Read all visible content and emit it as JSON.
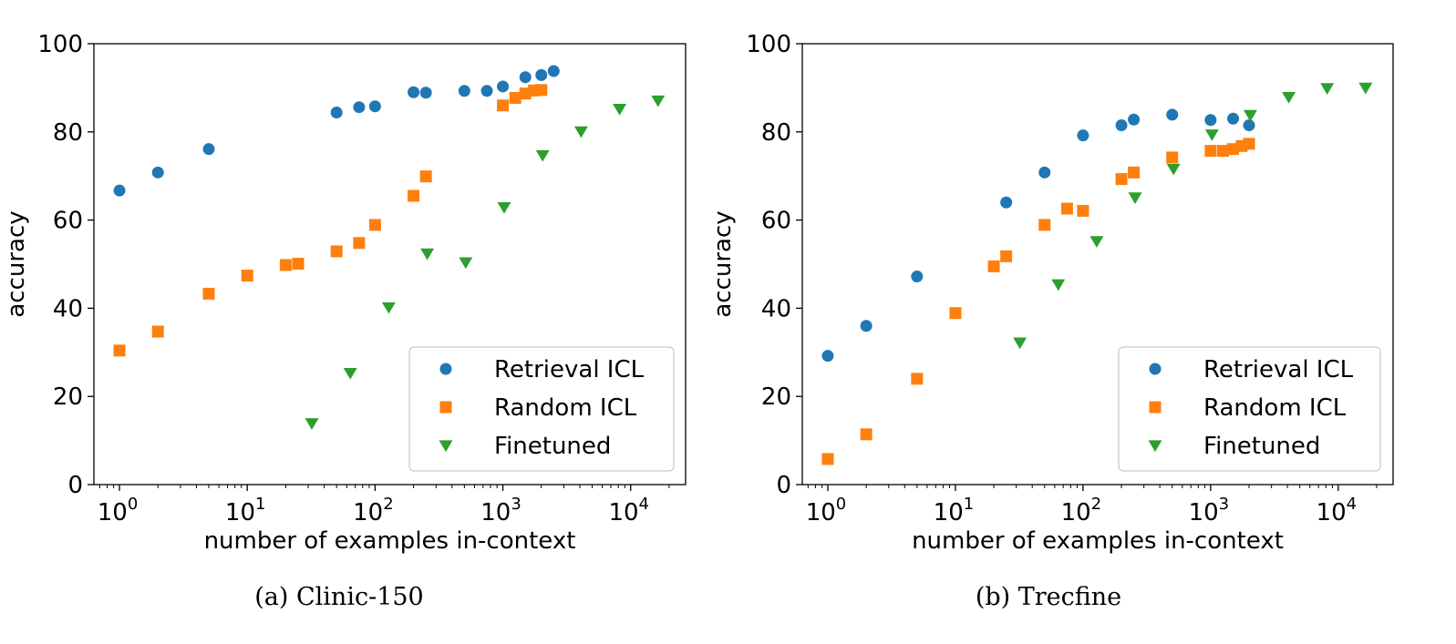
{
  "chart_data": [
    {
      "type": "scatter",
      "caption": "(a) Clinic-150",
      "xlabel": "number of examples in-context",
      "ylabel": "accuracy",
      "xscale": "log",
      "xlim_exp": [
        -0.2,
        4.43
      ],
      "ylim": [
        0,
        100
      ],
      "xticks": [
        {
          "exp": 0,
          "base": "10",
          "power": "0"
        },
        {
          "exp": 1,
          "base": "10",
          "power": "1"
        },
        {
          "exp": 2,
          "base": "10",
          "power": "2"
        },
        {
          "exp": 3,
          "base": "10",
          "power": "3"
        },
        {
          "exp": 4,
          "base": "10",
          "power": "4"
        }
      ],
      "yticks": [
        "0",
        "20",
        "40",
        "60",
        "80",
        "100"
      ],
      "legend_position": "lower-right",
      "series": [
        {
          "name": "Retrieval ICL",
          "marker": "circle",
          "color": "#1f77b4",
          "x": [
            1,
            2,
            5,
            50,
            75,
            100,
            200,
            250,
            500,
            750,
            1000,
            1500,
            2000,
            2500
          ],
          "y": [
            66.7,
            70.8,
            76.1,
            84.4,
            85.6,
            85.8,
            89.0,
            88.9,
            89.3,
            89.3,
            90.3,
            92.4,
            92.9,
            93.8
          ]
        },
        {
          "name": "Random ICL",
          "marker": "square",
          "color": "#ff7f0e",
          "x": [
            1,
            2,
            5,
            10,
            20,
            25,
            50,
            75,
            100,
            200,
            250,
            1000,
            1250,
            1500,
            1750,
            2000
          ],
          "y": [
            30.4,
            34.7,
            43.3,
            47.4,
            49.8,
            50.1,
            52.9,
            54.8,
            58.9,
            65.5,
            69.9,
            86.0,
            87.7,
            88.7,
            89.4,
            89.5
          ]
        },
        {
          "name": "Finetuned",
          "marker": "triangle-down",
          "color": "#2ca02c",
          "x": [
            32,
            64,
            128,
            256,
            512,
            1024,
            2048,
            4096,
            8192,
            16384
          ],
          "y": [
            13.9,
            25.3,
            40.2,
            52.4,
            50.4,
            62.9,
            74.7,
            80.1,
            85.2,
            87.1
          ]
        }
      ]
    },
    {
      "type": "scatter",
      "caption": "(b) Trecfine",
      "xlabel": "number of examples in-context",
      "ylabel": "accuracy",
      "xscale": "log",
      "xlim_exp": [
        -0.2,
        4.43
      ],
      "ylim": [
        0,
        100
      ],
      "xticks": [
        {
          "exp": 0,
          "base": "10",
          "power": "0"
        },
        {
          "exp": 1,
          "base": "10",
          "power": "1"
        },
        {
          "exp": 2,
          "base": "10",
          "power": "2"
        },
        {
          "exp": 3,
          "base": "10",
          "power": "3"
        },
        {
          "exp": 4,
          "base": "10",
          "power": "4"
        }
      ],
      "yticks": [
        "0",
        "20",
        "40",
        "60",
        "80",
        "100"
      ],
      "legend_position": "lower-right",
      "series": [
        {
          "name": "Retrieval ICL",
          "marker": "circle",
          "color": "#1f77b4",
          "x": [
            1,
            2,
            5,
            25,
            50,
            100,
            200,
            250,
            500,
            1000,
            1500,
            2000
          ],
          "y": [
            29.2,
            36.0,
            47.2,
            64.0,
            70.8,
            79.2,
            81.5,
            82.8,
            83.9,
            82.7,
            83.0,
            81.5
          ]
        },
        {
          "name": "Random ICL",
          "marker": "square",
          "color": "#ff7f0e",
          "x": [
            1,
            2,
            5,
            10,
            20,
            25,
            50,
            75,
            100,
            200,
            250,
            500,
            1000,
            1250,
            1500,
            1750,
            2000
          ],
          "y": [
            5.8,
            11.4,
            24.0,
            38.9,
            49.5,
            51.8,
            58.9,
            62.6,
            62.1,
            69.3,
            70.8,
            74.2,
            75.7,
            75.7,
            76.1,
            76.8,
            77.3
          ]
        },
        {
          "name": "Finetuned",
          "marker": "triangle-down",
          "color": "#2ca02c",
          "x": [
            32,
            64,
            128,
            256,
            512,
            1024,
            2048,
            4096,
            8192,
            16384
          ],
          "y": [
            32.2,
            45.4,
            55.2,
            65.1,
            71.6,
            79.4,
            83.8,
            87.9,
            89.9,
            90.0
          ]
        }
      ]
    }
  ]
}
